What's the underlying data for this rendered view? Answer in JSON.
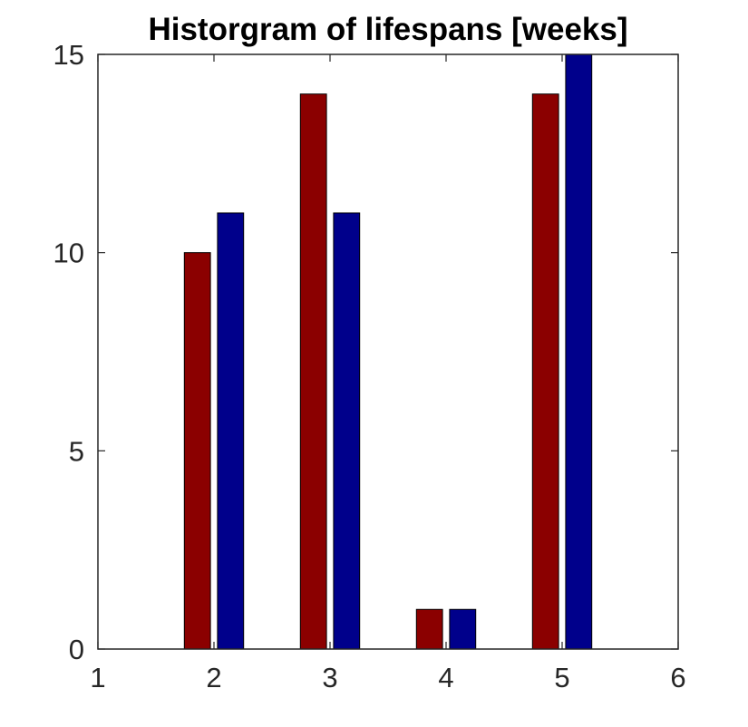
{
  "chart_data": {
    "type": "bar",
    "title": "Historgram of lifespans [weeks]",
    "xlabel": "",
    "ylabel": "",
    "xlim": [
      1,
      6
    ],
    "ylim": [
      0,
      15
    ],
    "xticks": [
      1,
      2,
      3,
      4,
      5,
      6
    ],
    "yticks": [
      0,
      5,
      10,
      15
    ],
    "grid": false,
    "legend": "none",
    "categories": [
      1,
      2,
      3,
      4,
      5
    ],
    "series": [
      {
        "color": "#8b0000",
        "values": [
          0,
          10,
          14,
          1,
          14
        ]
      },
      {
        "color": "#00008b",
        "values": [
          0,
          11,
          11,
          1,
          15
        ]
      }
    ]
  }
}
